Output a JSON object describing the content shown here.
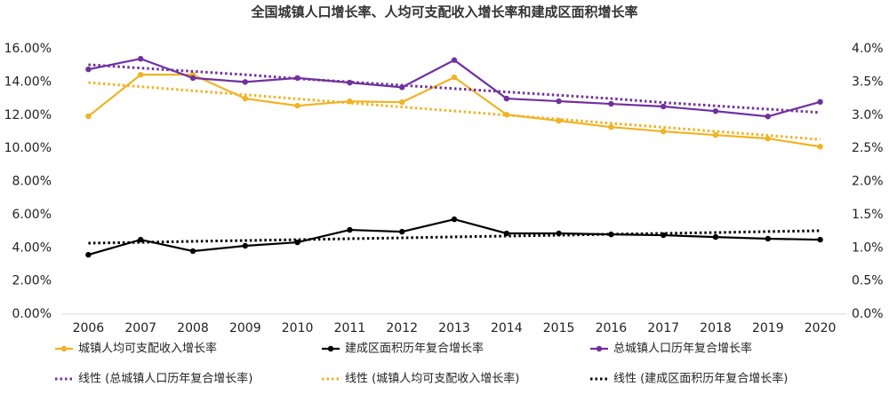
{
  "chart_data": {
    "type": "line",
    "title": "全国城镇人口增长率、人均可支配收入增长率和建成区面积增长率",
    "categories": [
      "2006",
      "2007",
      "2008",
      "2009",
      "2010",
      "2011",
      "2012",
      "2013",
      "2014",
      "2015",
      "2016",
      "2017",
      "2018",
      "2019",
      "2020"
    ],
    "ylim": [
      0,
      16
    ],
    "yticks": [
      {
        "value": 0,
        "label": "0.00%"
      },
      {
        "value": 2,
        "label": "2.00%"
      },
      {
        "value": 4,
        "label": "4.00%"
      },
      {
        "value": 6,
        "label": "6.00%"
      },
      {
        "value": 8,
        "label": "8.00%"
      },
      {
        "value": 10,
        "label": "10.00%"
      },
      {
        "value": 12,
        "label": "12.00%"
      },
      {
        "value": 14,
        "label": "14.00%"
      },
      {
        "value": 16,
        "label": "16.00%"
      }
    ],
    "y2lim": [
      0,
      4
    ],
    "y2ticks": [
      {
        "value": 0,
        "label": "0.0%"
      },
      {
        "value": 0.5,
        "label": "0.5%"
      },
      {
        "value": 1,
        "label": "1.0%"
      },
      {
        "value": 1.5,
        "label": "1.5%"
      },
      {
        "value": 2,
        "label": "2.0%"
      },
      {
        "value": 2.5,
        "label": "2.5%"
      },
      {
        "value": 3,
        "label": "3.0%"
      },
      {
        "value": 3.5,
        "label": "3.5%"
      },
      {
        "value": 4,
        "label": "4.0%"
      }
    ],
    "series": [
      {
        "name": "城镇人均可支配收入增长率",
        "color": "#f0b323",
        "style": "solid",
        "values": [
          11.93,
          14.44,
          14.44,
          13.0,
          12.57,
          12.83,
          12.78,
          14.28,
          12.03,
          11.66,
          11.28,
          11.02,
          10.8,
          10.59,
          10.1
        ]
      },
      {
        "name": "建成区面积历年复合增长率",
        "color": "#000000",
        "style": "solid",
        "values": [
          3.58,
          4.49,
          3.8,
          4.12,
          4.33,
          5.08,
          4.97,
          5.72,
          4.87,
          4.87,
          4.81,
          4.76,
          4.65,
          4.55,
          4.49
        ]
      },
      {
        "name": "总城镇人口历年复合增长率",
        "color": "#7030a0",
        "style": "solid",
        "axis": "y2",
        "values": [
          3.69,
          3.85,
          3.56,
          3.5,
          3.56,
          3.49,
          3.42,
          3.83,
          3.25,
          3.21,
          3.17,
          3.13,
          3.06,
          2.98,
          3.2
        ]
      },
      {
        "name": "线性 (总城镇人口历年复合增长率)",
        "color": "#7030a0",
        "style": "dotted",
        "axis": "y2",
        "values": [
          3.76,
          3.71,
          3.66,
          3.61,
          3.55,
          3.5,
          3.45,
          3.4,
          3.35,
          3.3,
          3.25,
          3.19,
          3.14,
          3.09,
          3.04
        ]
      },
      {
        "name": "线性 (城镇人均可支配收入增长率)",
        "color": "#f0b323",
        "style": "dotted",
        "values": [
          13.96,
          13.72,
          13.47,
          13.23,
          12.98,
          12.74,
          12.49,
          12.25,
          12.0,
          11.76,
          11.51,
          11.27,
          11.02,
          10.78,
          10.53
        ]
      },
      {
        "name": "线性 (建成区面积历年复合增长率)",
        "color": "#000000",
        "style": "dotted",
        "values": [
          4.28,
          4.33,
          4.39,
          4.44,
          4.49,
          4.55,
          4.6,
          4.66,
          4.71,
          4.76,
          4.82,
          4.87,
          4.92,
          4.98,
          5.03
        ]
      }
    ]
  }
}
